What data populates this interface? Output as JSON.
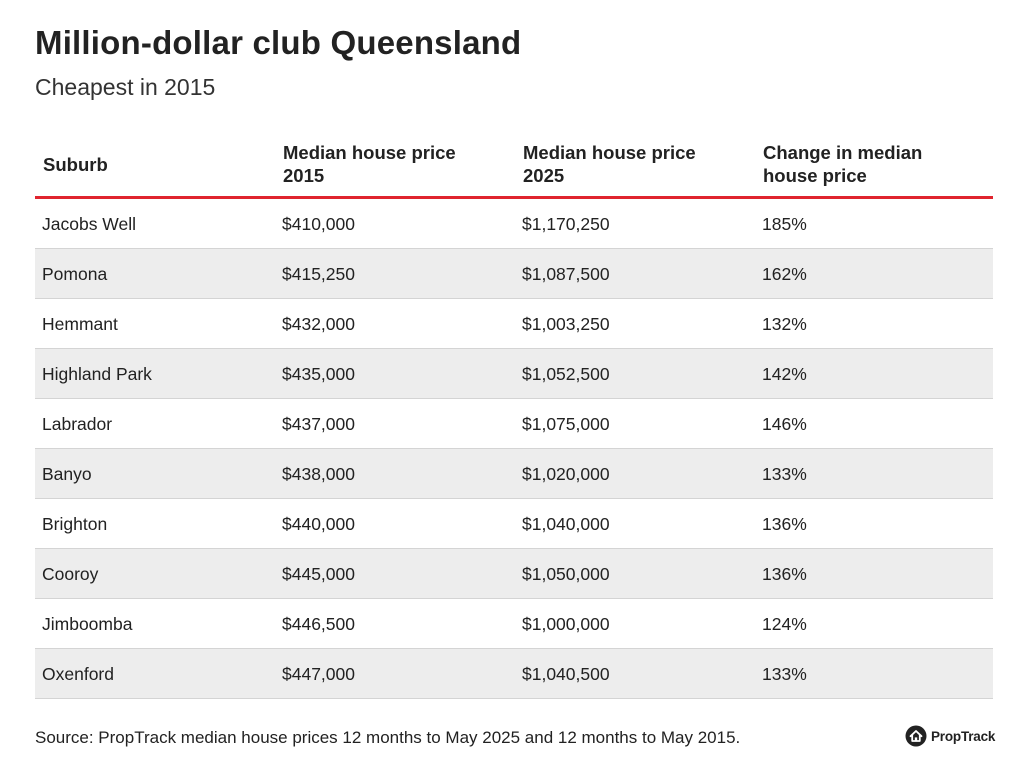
{
  "title": "Million-dollar club Queensland",
  "subtitle": "Cheapest in 2015",
  "source": "Source: PropTrack median house prices 12 months to May 2025 and 12 months to May 2015.",
  "logo": {
    "text": "PropTrack",
    "icon": "house-in-circle-icon"
  },
  "colors": {
    "header_rule": "#e0242e",
    "alt_row": "#ededed"
  },
  "chart_data": {
    "type": "table",
    "title": "Million-dollar club Queensland",
    "subtitle": "Cheapest in 2015",
    "columns": [
      "Suburb",
      "Median house price 2015",
      "Median house price 2025",
      "Change in median house price"
    ],
    "rows": [
      [
        "Jacobs Well",
        "$410,000",
        "$1,170,250",
        "185%"
      ],
      [
        "Pomona",
        "$415,250",
        "$1,087,500",
        "162%"
      ],
      [
        "Hemmant",
        "$432,000",
        "$1,003,250",
        "132%"
      ],
      [
        "Highland Park",
        "$435,000",
        "$1,052,500",
        "142%"
      ],
      [
        "Labrador",
        "$437,000",
        "$1,075,000",
        "146%"
      ],
      [
        "Banyo",
        "$438,000",
        "$1,020,000",
        "133%"
      ],
      [
        "Brighton",
        "$440,000",
        "$1,040,000",
        "136%"
      ],
      [
        "Cooroy",
        "$445,000",
        "$1,050,000",
        "136%"
      ],
      [
        "Jimboomba",
        "$446,500",
        "$1,000,000",
        "124%"
      ],
      [
        "Oxenford",
        "$447,000",
        "$1,040,500",
        "133%"
      ]
    ]
  }
}
